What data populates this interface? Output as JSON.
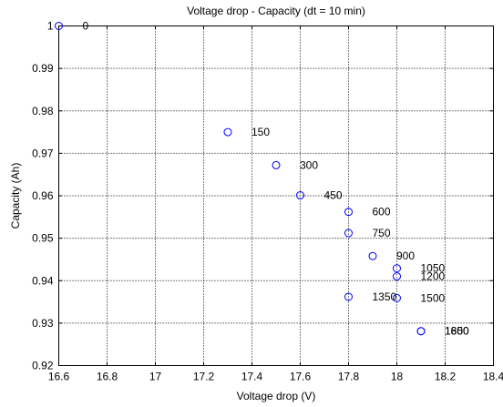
{
  "chart_data": {
    "type": "scatter",
    "title": "Voltage drop - Capacity (dt = 10 min)",
    "xlabel": "Voltage drop (V)",
    "ylabel": "Capacity (Ah)",
    "xlim": [
      16.6,
      18.4
    ],
    "ylim": [
      0.92,
      1.0
    ],
    "xticks": [
      "16.6",
      "16.8",
      "17",
      "17.2",
      "17.4",
      "17.6",
      "17.8",
      "18",
      "18.2",
      "18.4"
    ],
    "yticks": [
      "0.92",
      "0.93",
      "0.94",
      "0.95",
      "0.96",
      "0.97",
      "0.98",
      "0.99",
      "1"
    ],
    "grid": true,
    "marker": "circle",
    "marker_color": "#0000ff",
    "points": [
      {
        "x": 16.6,
        "y": 1.0,
        "label": "0"
      },
      {
        "x": 17.3,
        "y": 0.975,
        "label": "150"
      },
      {
        "x": 17.5,
        "y": 0.9672,
        "label": "300"
      },
      {
        "x": 17.6,
        "y": 0.9601,
        "label": "450"
      },
      {
        "x": 17.8,
        "y": 0.9562,
        "label": "600"
      },
      {
        "x": 17.8,
        "y": 0.9512,
        "label": "750"
      },
      {
        "x": 17.9,
        "y": 0.9458,
        "label": "900"
      },
      {
        "x": 18.0,
        "y": 0.9429,
        "label": "1050"
      },
      {
        "x": 18.0,
        "y": 0.941,
        "label": "1200"
      },
      {
        "x": 17.8,
        "y": 0.9362,
        "label": "1350"
      },
      {
        "x": 18.0,
        "y": 0.9359,
        "label": "1500"
      },
      {
        "x": 18.1,
        "y": 0.9281,
        "label": "1650"
      },
      {
        "x": 18.1,
        "y": 0.9281,
        "label": "1800"
      }
    ]
  }
}
